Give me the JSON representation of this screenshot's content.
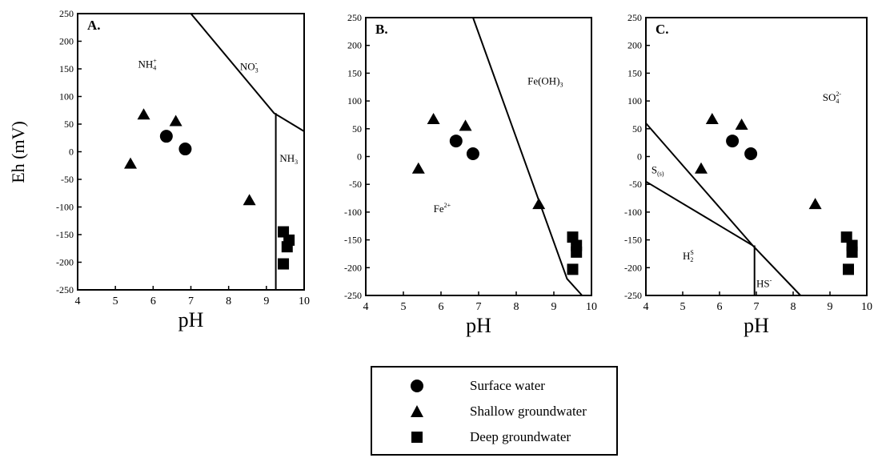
{
  "y_axis_label": "Eh (mV)",
  "chart_data": [
    {
      "type": "scatter",
      "panel": "A.",
      "xlabel": "pH",
      "ylabel": "Eh (mV)",
      "xlim": [
        4,
        10
      ],
      "ylim": [
        -250,
        250
      ],
      "xticks": [
        "4",
        "5",
        "6",
        "7",
        "8",
        "9",
        "10"
      ],
      "yticks": [
        "250",
        "200",
        "150",
        "100",
        "50",
        "0",
        "-50",
        "-100",
        "-150",
        "-200",
        "-250"
      ],
      "region_labels": [
        {
          "base": "NH",
          "sub": "4",
          "sup": "+",
          "x": 5.6,
          "y": 152
        },
        {
          "base": "NO",
          "sub": "3",
          "sup": "-",
          "x": 8.3,
          "y": 148
        },
        {
          "base": "NH",
          "sub": "3",
          "sup": "",
          "x": 9.35,
          "y": -18
        }
      ],
      "boundaries": [
        [
          [
            7.0,
            250
          ],
          [
            9.2,
            70
          ],
          [
            10.0,
            37
          ]
        ],
        [
          [
            9.25,
            70
          ],
          [
            9.25,
            -250
          ]
        ]
      ],
      "series": [
        {
          "name": "Surface water",
          "marker": "circle",
          "points": [
            [
              6.35,
              28
            ],
            [
              6.85,
              5
            ]
          ]
        },
        {
          "name": "Shallow groundwater",
          "marker": "triangle",
          "points": [
            [
              5.4,
              -22
            ],
            [
              5.75,
              67
            ],
            [
              6.6,
              55
            ],
            [
              8.55,
              -88
            ]
          ]
        },
        {
          "name": "Deep groundwater",
          "marker": "square",
          "points": [
            [
              9.45,
              -145
            ],
            [
              9.6,
              -160
            ],
            [
              9.55,
              -172
            ],
            [
              9.45,
              -203
            ]
          ]
        }
      ]
    },
    {
      "type": "scatter",
      "panel": "B.",
      "xlabel": "pH",
      "ylabel": "",
      "xlim": [
        4,
        10
      ],
      "ylim": [
        -250,
        250
      ],
      "xticks": [
        "4",
        "5",
        "6",
        "7",
        "8",
        "9",
        "10"
      ],
      "yticks": [
        "250",
        "200",
        "150",
        "100",
        "50",
        "0",
        "-50",
        "-100",
        "-150",
        "-200",
        "-250"
      ],
      "region_labels": [
        {
          "base": "Fe(OH)",
          "sub": "3",
          "sup": "",
          "x": 8.3,
          "y": 130
        },
        {
          "base": "Fe",
          "sub": "",
          "sup": "2+",
          "x": 5.8,
          "y": -100
        }
      ],
      "boundaries": [
        [
          [
            6.85,
            250
          ],
          [
            9.35,
            -220
          ],
          [
            9.75,
            -250
          ]
        ]
      ],
      "series": [
        {
          "name": "Surface water",
          "marker": "circle",
          "points": [
            [
              6.4,
              28
            ],
            [
              6.85,
              5
            ]
          ]
        },
        {
          "name": "Shallow groundwater",
          "marker": "triangle",
          "points": [
            [
              5.4,
              -22
            ],
            [
              5.8,
              67
            ],
            [
              6.65,
              55
            ],
            [
              8.6,
              -86
            ]
          ]
        },
        {
          "name": "Deep groundwater",
          "marker": "square",
          "points": [
            [
              9.5,
              -145
            ],
            [
              9.6,
              -160
            ],
            [
              9.6,
              -172
            ],
            [
              9.5,
              -203
            ]
          ]
        }
      ]
    },
    {
      "type": "scatter",
      "panel": "C.",
      "xlabel": "pH",
      "ylabel": "",
      "xlim": [
        4,
        10
      ],
      "ylim": [
        -250,
        250
      ],
      "xticks": [
        "4",
        "5",
        "6",
        "7",
        "8",
        "9",
        "10"
      ],
      "yticks": [
        "250",
        "200",
        "150",
        "100",
        "50",
        "0",
        "-50",
        "-100",
        "-150",
        "-200",
        "-250"
      ],
      "region_labels": [
        {
          "base": "SO",
          "sub": "4",
          "sup": "2-",
          "x": 8.8,
          "y": 100
        },
        {
          "base": "S",
          "sub": "(s)",
          "sup": "",
          "x": 4.15,
          "y": -30
        },
        {
          "base": "H",
          "sub": "2",
          "sup": "S",
          "x": 5.0,
          "y": -185
        },
        {
          "base": "HS",
          "sub": "",
          "sup": "-",
          "x": 7.0,
          "y": -235
        }
      ],
      "boundaries": [
        [
          [
            4.0,
            60
          ],
          [
            6.9,
            -160
          ]
        ],
        [
          [
            4.0,
            -45
          ],
          [
            6.9,
            -160
          ],
          [
            8.2,
            -250
          ]
        ],
        [
          [
            6.95,
            -160
          ],
          [
            6.95,
            -250
          ]
        ]
      ],
      "series": [
        {
          "name": "Surface water",
          "marker": "circle",
          "points": [
            [
              6.35,
              28
            ],
            [
              6.85,
              5
            ]
          ]
        },
        {
          "name": "Shallow groundwater",
          "marker": "triangle",
          "points": [
            [
              5.5,
              -22
            ],
            [
              5.8,
              67
            ],
            [
              6.6,
              57
            ],
            [
              8.6,
              -86
            ]
          ]
        },
        {
          "name": "Deep groundwater",
          "marker": "square",
          "points": [
            [
              9.45,
              -145
            ],
            [
              9.6,
              -160
            ],
            [
              9.6,
              -172
            ],
            [
              9.5,
              -203
            ]
          ]
        }
      ]
    }
  ],
  "legend": {
    "items": [
      {
        "label": "Surface water",
        "marker": "circle"
      },
      {
        "label": "Shallow groundwater",
        "marker": "triangle"
      },
      {
        "label": "Deep groundwater",
        "marker": "square"
      }
    ]
  }
}
